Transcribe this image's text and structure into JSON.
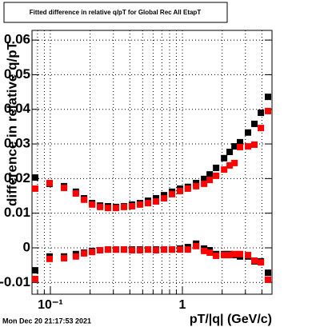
{
  "chart_data": {
    "type": "scatter",
    "title": "Fitted difference in relative q/pT for Global Rec All EtapT",
    "x_label": "pT/|q| (GeV/c)",
    "y_label": "difference in relative q/pT",
    "timestamp": "Mon Dec 20 21:17:53 2021",
    "x_log": true,
    "grid": true,
    "xlim": [
      0.0726,
      4.77
    ],
    "ylim": [
      -0.0134,
      0.0628
    ],
    "xticks": [
      {
        "value": 0.1,
        "label": "10⁻¹"
      },
      {
        "value": 1,
        "label": "1"
      }
    ],
    "xminorticks": [
      0.08,
      0.09,
      0.2,
      0.3,
      0.4,
      0.5,
      0.6,
      0.7,
      0.8,
      0.9,
      2,
      3,
      4
    ],
    "yticks": [
      -0.01,
      0,
      0.01,
      0.02,
      0.03,
      0.04,
      0.05,
      0.06
    ],
    "x": [
      0.0767,
      0.0986,
      0.127,
      0.156,
      0.18,
      0.207,
      0.238,
      0.273,
      0.314,
      0.361,
      0.415,
      0.477,
      0.549,
      0.631,
      0.726,
      0.834,
      0.959,
      1.1,
      1.27,
      1.46,
      1.61,
      1.8,
      2.07,
      2.28,
      2.48,
      2.73,
      3.14,
      3.51,
      3.93,
      4.45
    ],
    "series": [
      {
        "color": "#000000",
        "values": [
          0.0203,
          0.0185,
          0.0178,
          0.0162,
          0.0143,
          0.0129,
          0.0122,
          0.012,
          0.0118,
          0.012,
          0.0125,
          0.0129,
          0.0136,
          0.0143,
          0.0152,
          0.0162,
          0.0171,
          0.0176,
          0.0187,
          0.0199,
          0.0212,
          0.0231,
          0.0259,
          0.0277,
          0.0293,
          0.0305,
          0.0333,
          0.0358,
          0.039,
          0.0436
        ]
      },
      {
        "color": "#ff0000",
        "values": [
          0.0171,
          0.0187,
          0.0173,
          0.0157,
          0.0139,
          0.0125,
          0.0118,
          0.0115,
          0.0115,
          0.0118,
          0.012,
          0.0125,
          0.0129,
          0.0134,
          0.0143,
          0.0155,
          0.0164,
          0.0171,
          0.0178,
          0.0185,
          0.0196,
          0.0208,
          0.0226,
          0.0238,
          0.0245,
          0.0291,
          0.0293,
          0.0298,
          0.0346,
          0.0395
        ]
      },
      {
        "color": "#000000",
        "values": [
          -0.0065,
          -0.0025,
          -0.0025,
          -0.0018,
          -0.0014,
          -0.0009,
          -0.0007,
          -0.0005,
          -0.0005,
          -0.0005,
          -0.0005,
          -0.0005,
          -0.0005,
          -0.0005,
          -0.0005,
          -0.0005,
          -0.0002,
          0.0002,
          0.0012,
          -0.0002,
          -0.0007,
          -0.0018,
          -0.0018,
          -0.0018,
          -0.0021,
          -0.0025,
          -0.0025,
          -0.0039,
          -0.0039,
          -0.0072
        ]
      },
      {
        "color": "#ff0000",
        "values": [
          -0.009,
          -0.0032,
          -0.003,
          -0.0025,
          -0.0016,
          -0.0012,
          -0.0007,
          -0.0005,
          -0.0005,
          -0.0005,
          -0.0007,
          -0.0007,
          -0.0005,
          -0.0007,
          -0.0005,
          -0.0005,
          -0.0005,
          -0.0005,
          0.0005,
          -0.0009,
          -0.0014,
          -0.0023,
          -0.0021,
          -0.0021,
          -0.0018,
          -0.0018,
          -0.0021,
          -0.0037,
          -0.0042,
          -0.0092
        ]
      }
    ]
  }
}
